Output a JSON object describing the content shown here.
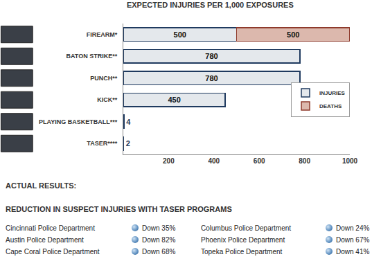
{
  "chart_data": {
    "type": "bar",
    "orientation": "horizontal",
    "stacked": true,
    "title": "EXPECTED INJURIES PER 1,000 EXPOSURES",
    "categories": [
      "FIREARM*",
      "BATON STRIKE**",
      "PUNCH**",
      "KICK**",
      "PLAYING BASKETBALL***",
      "TASER****"
    ],
    "series": [
      {
        "name": "INJURIES",
        "color": "#e4e8ec",
        "values": [
          500,
          780,
          780,
          450,
          4,
          2
        ]
      },
      {
        "name": "DEATHS",
        "color": "#dcb8ad",
        "values": [
          500,
          null,
          null,
          null,
          null,
          null
        ]
      }
    ],
    "xlim": [
      0,
      1000
    ],
    "xticks": [
      200,
      400,
      600,
      800,
      1000
    ],
    "grid": false,
    "legend": "right",
    "data_labels": true
  },
  "results": {
    "heading": "ACTUAL RESULTS:",
    "subheading": "REDUCTION IN SUSPECT INJURIES WITH TASER PROGRAMS",
    "columns": [
      [
        {
          "department": "Cincinnati Police Department",
          "change": "Down 35%"
        },
        {
          "department": "Austin Police Department",
          "change": "Down 82%"
        },
        {
          "department": "Cape Coral Police Department",
          "change": "Down 68%"
        }
      ],
      [
        {
          "department": "Columbus Police Department",
          "change": "Down 24%"
        },
        {
          "department": "Phoenix Police Department",
          "change": "Down 67%"
        },
        {
          "department": "Topeka Police Department",
          "change": "Down 41%"
        }
      ]
    ]
  }
}
